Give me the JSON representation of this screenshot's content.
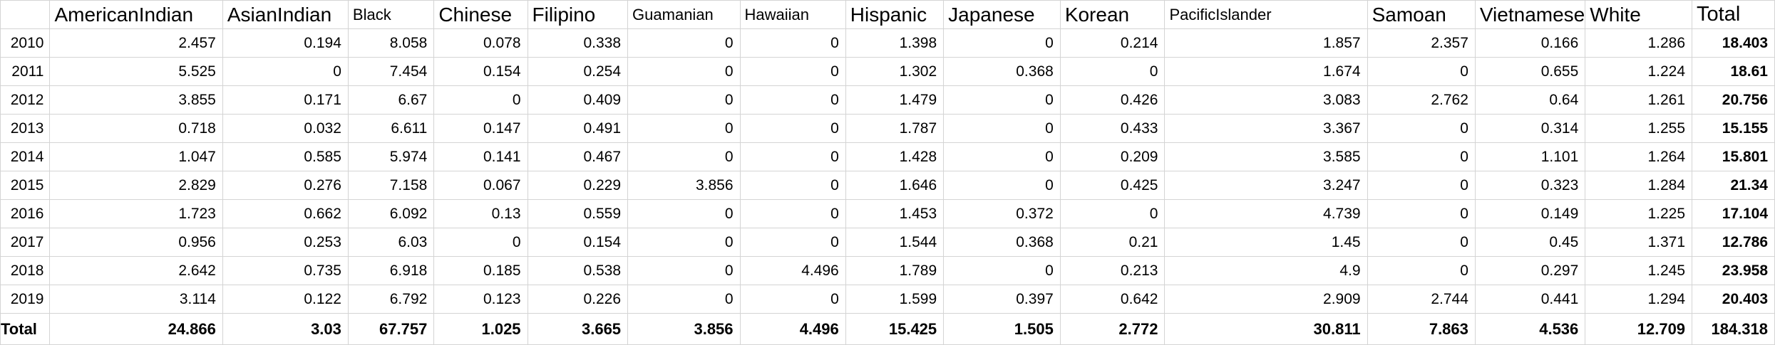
{
  "columns": [
    "",
    "AmericanIndian",
    "AsianIndian",
    "Black",
    "Chinese",
    "Filipino",
    "Guamanian",
    "Hawaiian",
    "Hispanic",
    "Japanese",
    "Korean",
    "PacificIslander",
    "Samoan",
    "Vietnamese",
    "White",
    "Total"
  ],
  "rows": [
    [
      "2010",
      "2.457",
      "0.194",
      "8.058",
      "0.078",
      "0.338",
      "0",
      "0",
      "1.398",
      "0",
      "0.214",
      "1.857",
      "2.357",
      "0.166",
      "1.286",
      "18.403"
    ],
    [
      "2011",
      "5.525",
      "0",
      "7.454",
      "0.154",
      "0.254",
      "0",
      "0",
      "1.302",
      "0.368",
      "0",
      "1.674",
      "0",
      "0.655",
      "1.224",
      "18.61"
    ],
    [
      "2012",
      "3.855",
      "0.171",
      "6.67",
      "0",
      "0.409",
      "0",
      "0",
      "1.479",
      "0",
      "0.426",
      "3.083",
      "2.762",
      "0.64",
      "1.261",
      "20.756"
    ],
    [
      "2013",
      "0.718",
      "0.032",
      "6.611",
      "0.147",
      "0.491",
      "0",
      "0",
      "1.787",
      "0",
      "0.433",
      "3.367",
      "0",
      "0.314",
      "1.255",
      "15.155"
    ],
    [
      "2014",
      "1.047",
      "0.585",
      "5.974",
      "0.141",
      "0.467",
      "0",
      "0",
      "1.428",
      "0",
      "0.209",
      "3.585",
      "0",
      "1.101",
      "1.264",
      "15.801"
    ],
    [
      "2015",
      "2.829",
      "0.276",
      "7.158",
      "0.067",
      "0.229",
      "3.856",
      "0",
      "1.646",
      "0",
      "0.425",
      "3.247",
      "0",
      "0.323",
      "1.284",
      "21.34"
    ],
    [
      "2016",
      "1.723",
      "0.662",
      "6.092",
      "0.13",
      "0.559",
      "0",
      "0",
      "1.453",
      "0.372",
      "0",
      "4.739",
      "0",
      "0.149",
      "1.225",
      "17.104"
    ],
    [
      "2017",
      "0.956",
      "0.253",
      "6.03",
      "0",
      "0.154",
      "0",
      "0",
      "1.544",
      "0.368",
      "0.21",
      "1.45",
      "0",
      "0.45",
      "1.371",
      "12.786"
    ],
    [
      "2018",
      "2.642",
      "0.735",
      "6.918",
      "0.185",
      "0.538",
      "0",
      "4.496",
      "1.789",
      "0",
      "0.213",
      "4.9",
      "0",
      "0.297",
      "1.245",
      "23.958"
    ],
    [
      "2019",
      "3.114",
      "0.122",
      "6.792",
      "0.123",
      "0.226",
      "0",
      "0",
      "1.599",
      "0.397",
      "0.642",
      "2.909",
      "2.744",
      "0.441",
      "1.294",
      "20.403"
    ]
  ],
  "total_row": [
    "Total",
    "24.866",
    "3.03",
    "67.757",
    "1.025",
    "3.665",
    "3.856",
    "4.496",
    "15.425",
    "1.505",
    "2.772",
    "30.811",
    "7.863",
    "4.536",
    "12.709",
    "184.318"
  ]
}
